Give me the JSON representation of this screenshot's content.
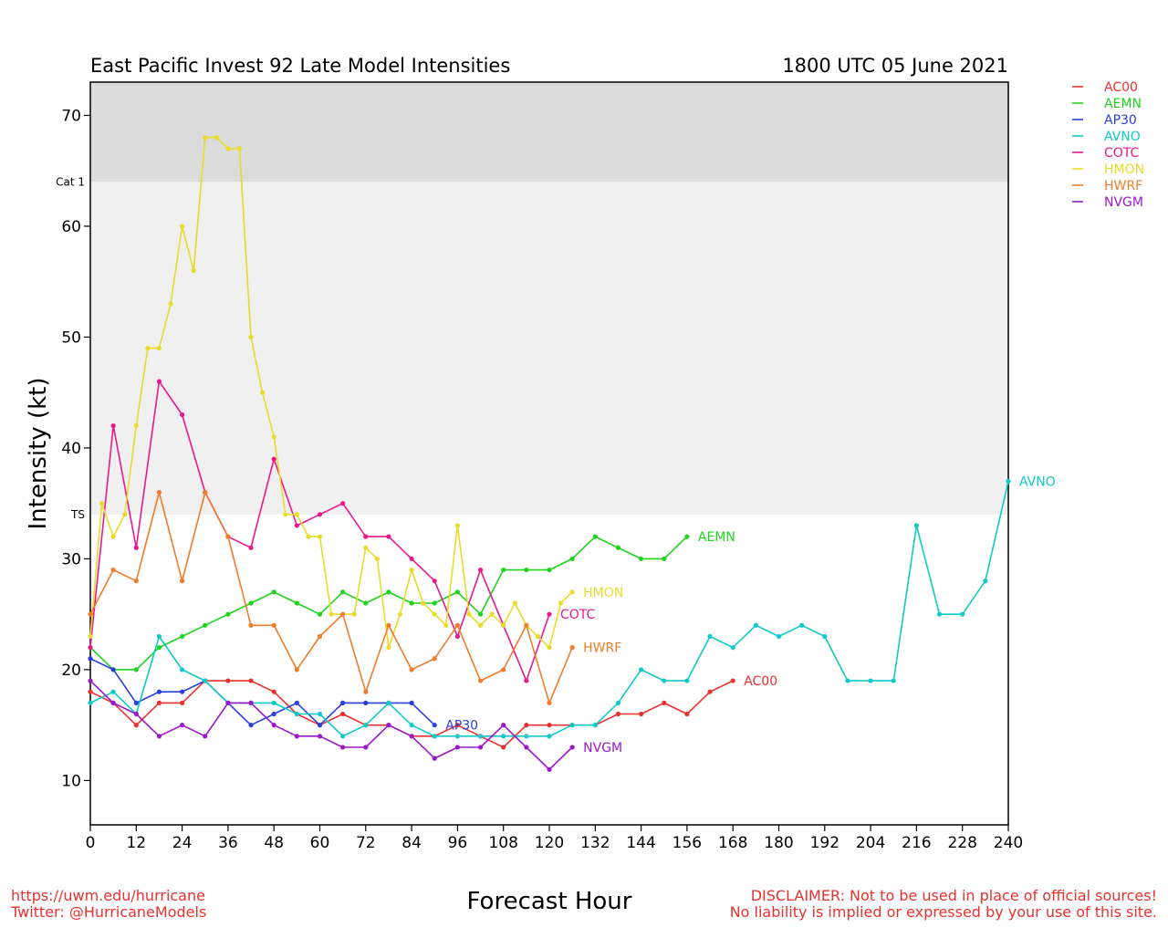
{
  "chart_data": {
    "type": "line",
    "title": "East Pacific Invest 92 Late Model Intensities",
    "subtitle": "1800 UTC 05 June 2021",
    "xlabel": "Forecast Hour",
    "ylabel": "Intensity (kt)",
    "xlim": [
      0,
      240
    ],
    "ylim": [
      6,
      73
    ],
    "xticks": [
      0,
      12,
      24,
      36,
      48,
      60,
      72,
      84,
      96,
      108,
      120,
      132,
      144,
      156,
      168,
      180,
      192,
      204,
      216,
      228,
      240
    ],
    "yticks": [
      10,
      20,
      30,
      40,
      50,
      60,
      70
    ],
    "thresholds": [
      {
        "label": "TS",
        "value": 34,
        "band_color": "#f0f0f0"
      },
      {
        "label": "Cat 1",
        "value": 64,
        "band_color": "#dcdcdc"
      }
    ],
    "legend_position": "top-right",
    "series": [
      {
        "name": "AC00",
        "color": "#e8322f",
        "x": [
          0,
          6,
          12,
          18,
          24,
          30,
          36,
          42,
          48,
          54,
          60,
          66,
          72,
          78,
          84,
          90,
          96,
          102,
          108,
          114,
          120,
          126,
          132,
          138,
          144,
          150,
          156,
          162,
          168
        ],
        "y": [
          18,
          17,
          15,
          17,
          17,
          19,
          19,
          19,
          18,
          16,
          15,
          16,
          15,
          15,
          14,
          14,
          15,
          14,
          13,
          15,
          15,
          15,
          15,
          16,
          16,
          17,
          16,
          18,
          19
        ]
      },
      {
        "name": "AEMN",
        "color": "#1fd31f",
        "x": [
          0,
          6,
          12,
          18,
          24,
          30,
          36,
          42,
          48,
          54,
          60,
          66,
          72,
          78,
          84,
          90,
          96,
          102,
          108,
          114,
          120,
          126,
          132,
          138,
          144,
          150,
          156
        ],
        "y": [
          22,
          20,
          20,
          22,
          23,
          24,
          25,
          26,
          27,
          26,
          25,
          27,
          26,
          27,
          26,
          26,
          27,
          25,
          29,
          29,
          29,
          30,
          32,
          31,
          30,
          30,
          32
        ]
      },
      {
        "name": "AP30",
        "color": "#2a3fe0",
        "x": [
          0,
          6,
          12,
          18,
          24,
          30,
          36,
          42,
          48,
          54,
          60,
          66,
          72,
          78,
          84,
          90
        ],
        "y": [
          21,
          20,
          17,
          18,
          18,
          19,
          17,
          15,
          16,
          17,
          15,
          17,
          17,
          17,
          17,
          15
        ]
      },
      {
        "name": "AVNO",
        "color": "#10c9c9",
        "x": [
          0,
          6,
          12,
          18,
          24,
          30,
          36,
          42,
          48,
          54,
          60,
          66,
          72,
          78,
          84,
          90,
          96,
          102,
          108,
          114,
          120,
          126,
          132,
          138,
          144,
          150,
          156,
          162,
          168,
          174,
          180,
          186,
          192,
          198,
          204,
          210,
          216,
          222,
          228,
          234,
          240
        ],
        "y": [
          17,
          18,
          16,
          23,
          20,
          19,
          17,
          17,
          17,
          16,
          16,
          14,
          15,
          17,
          15,
          14,
          14,
          14,
          14,
          14,
          14,
          15,
          15,
          17,
          20,
          19,
          19,
          23,
          22,
          24,
          23,
          24,
          23,
          19,
          19,
          19,
          33,
          25,
          25,
          28,
          37
        ]
      },
      {
        "name": "COTC",
        "color": "#e81a8c",
        "x": [
          0,
          6,
          12,
          18,
          24,
          30,
          36,
          42,
          48,
          54,
          60,
          66,
          72,
          78,
          84,
          90,
          96,
          102,
          108,
          114,
          120
        ],
        "y": [
          22,
          42,
          31,
          46,
          43,
          36,
          32,
          31,
          39,
          33,
          34,
          35,
          32,
          32,
          30,
          28,
          23,
          29,
          24,
          19,
          25
        ]
      },
      {
        "name": "HMON",
        "color": "#e8dc2a",
        "x": [
          0,
          3,
          6,
          9,
          12,
          15,
          18,
          21,
          24,
          27,
          30,
          33,
          36,
          39,
          42,
          45,
          48,
          51,
          54,
          57,
          60,
          63,
          66,
          69,
          72,
          75,
          78,
          81,
          84,
          87,
          90,
          93,
          96,
          99,
          102,
          105,
          108,
          111,
          114,
          117,
          120,
          123,
          126
        ],
        "y": [
          23,
          35,
          32,
          34,
          42,
          49,
          49,
          53,
          60,
          56,
          68,
          68,
          67,
          67,
          50,
          45,
          41,
          34,
          34,
          32,
          32,
          25,
          25,
          25,
          31,
          30,
          22,
          25,
          29,
          26,
          25,
          24,
          33,
          25,
          24,
          25,
          24,
          26,
          24,
          23,
          22,
          26,
          27
        ]
      },
      {
        "name": "HWRF",
        "color": "#ef7c2a",
        "x": [
          0,
          6,
          12,
          18,
          24,
          30,
          36,
          42,
          48,
          54,
          60,
          66,
          72,
          78,
          84,
          90,
          96,
          102,
          108,
          114,
          120,
          126
        ],
        "y": [
          25,
          29,
          28,
          36,
          28,
          36,
          32,
          24,
          24,
          20,
          23,
          25,
          18,
          24,
          20,
          21,
          24,
          19,
          20,
          24,
          17,
          22
        ]
      },
      {
        "name": "NVGM",
        "color": "#9a18c9",
        "x": [
          0,
          6,
          12,
          18,
          24,
          30,
          36,
          42,
          48,
          54,
          60,
          66,
          72,
          78,
          84,
          90,
          96,
          102,
          108,
          114,
          120,
          126
        ],
        "y": [
          19,
          17,
          16,
          14,
          15,
          14,
          17,
          17,
          15,
          14,
          14,
          13,
          13,
          15,
          14,
          12,
          13,
          13,
          15,
          13,
          11,
          13
        ]
      }
    ]
  },
  "footer": {
    "url": "https://uwm.edu/hurricane",
    "twitter": "Twitter: @HurricaneModels",
    "disclaimer_line1": "DISCLAIMER: Not to be used in place of official sources!",
    "disclaimer_line2": "No liability is implied or expressed by your use of this site."
  }
}
